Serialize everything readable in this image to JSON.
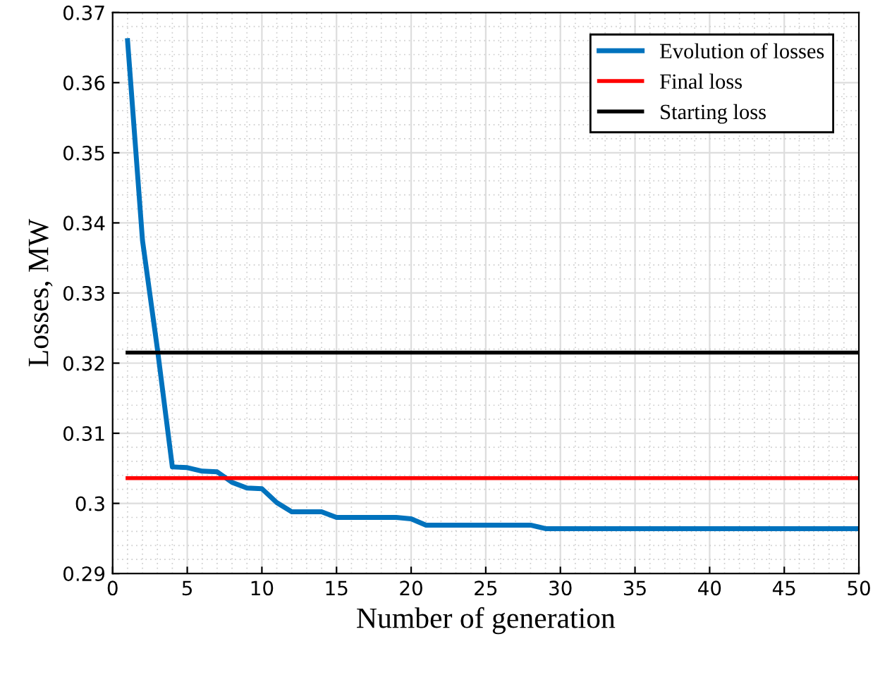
{
  "chart_data": {
    "type": "line",
    "xlabel": "Number of generation",
    "ylabel": "Losses, MW",
    "xlim": [
      0,
      50
    ],
    "xticks": [
      0,
      5,
      10,
      15,
      20,
      25,
      30,
      35,
      40,
      45,
      50
    ],
    "ylim": [
      0.29,
      0.37
    ],
    "yticks": [
      0.29,
      0.3,
      0.31,
      0.32,
      0.33,
      0.34,
      0.35,
      0.36,
      0.37
    ],
    "grid": true,
    "legend": "top right",
    "series": [
      {
        "name": "Evolution of losses",
        "color": "#0072bd",
        "x": [
          1,
          2,
          3,
          4,
          5,
          6,
          7,
          8,
          9,
          10,
          11,
          12,
          13,
          14,
          15,
          16,
          17,
          18,
          19,
          20,
          21,
          22,
          23,
          24,
          25,
          26,
          27,
          28,
          29,
          30,
          35,
          40,
          45,
          50
        ],
        "values": [
          0.366,
          0.3375,
          0.322,
          0.3052,
          0.3051,
          0.3046,
          0.3045,
          0.303,
          0.3022,
          0.3021,
          0.3001,
          0.2988,
          0.2988,
          0.2988,
          0.298,
          0.298,
          0.298,
          0.298,
          0.298,
          0.2978,
          0.2969,
          0.2969,
          0.2969,
          0.2969,
          0.2969,
          0.2969,
          0.2969,
          0.2969,
          0.2964,
          0.2964,
          0.2964,
          0.2964,
          0.2964,
          0.2964
        ]
      },
      {
        "name": "Final loss",
        "color": "#ff0000",
        "x": [
          1,
          50
        ],
        "values": [
          0.3036,
          0.3036
        ]
      },
      {
        "name": "Starting loss",
        "color": "#000000",
        "x": [
          1,
          50
        ],
        "values": [
          0.3215,
          0.3215
        ]
      }
    ]
  }
}
